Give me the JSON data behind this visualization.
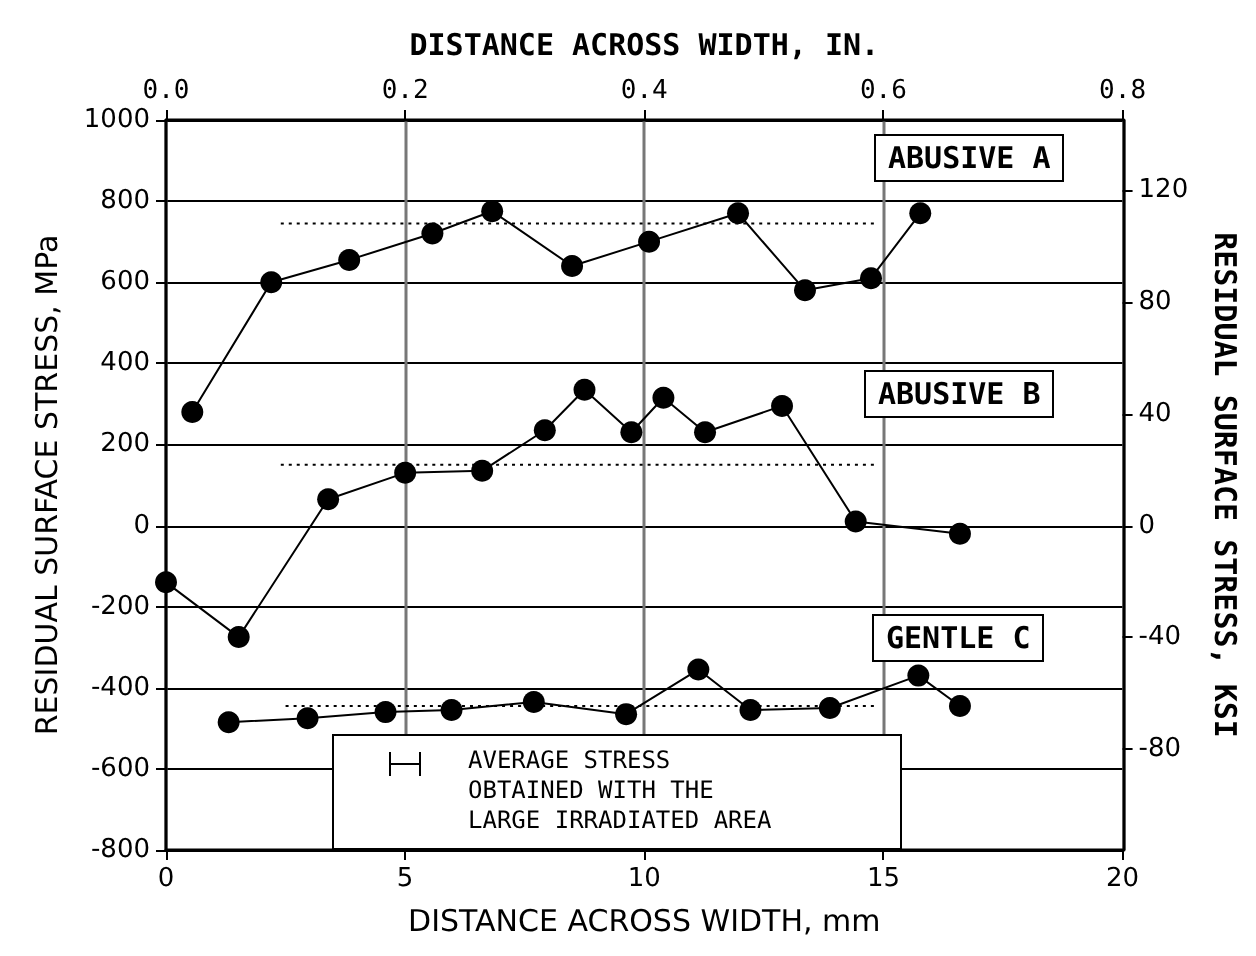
{
  "chart_data": {
    "type": "line",
    "xlabel": "DISTANCE ACROSS WIDTH, mm",
    "ylabel": "RESIDUAL SURFACE STRESS, MPa",
    "y2label": "RESIDUAL SURFACE STRESS, KSI",
    "x2label": "DISTANCE ACROSS WIDTH, IN.",
    "xlim": [
      0,
      20
    ],
    "xticks": [
      0,
      5,
      10,
      15,
      20
    ],
    "ylim": [
      -800,
      1000
    ],
    "yticks": [
      -800,
      -600,
      -400,
      -200,
      0,
      200,
      400,
      600,
      800,
      1000
    ],
    "y2lim": [
      -116,
      145
    ],
    "y2ticks": [
      -80,
      -40,
      0,
      40,
      80,
      120
    ],
    "x2lim": [
      0,
      0.8
    ],
    "x2ticks": [
      {
        "value": 0,
        "label": "0.0"
      },
      {
        "value": 0.2,
        "label": "0.2"
      },
      {
        "value": 0.4,
        "label": "0.4"
      },
      {
        "value": 0.6,
        "label": "0.6"
      },
      {
        "value": 0.8,
        "label": "0.8"
      }
    ],
    "grid": true,
    "marker": "circle",
    "line_style": "solid",
    "series": [
      {
        "color": "#000000",
        "x": [
          0.55,
          2.2,
          3.83,
          5.57,
          6.82,
          8.49,
          10.1,
          11.96,
          13.36,
          14.74,
          15.77
        ],
        "values": [
          280,
          600,
          655,
          720,
          775,
          640,
          700,
          770,
          580,
          610,
          770
        ]
      },
      {
        "color": "#000000",
        "x": [
          0,
          1.52,
          3.39,
          5.0,
          6.61,
          7.92,
          8.75,
          9.73,
          10.4,
          11.27,
          12.88,
          14.42,
          16.6
        ],
        "values": [
          -140,
          -275,
          65,
          130,
          135,
          235,
          335,
          230,
          315,
          230,
          295,
          10,
          -20
        ]
      },
      {
        "color": "#000000",
        "x": [
          1.31,
          2.96,
          4.59,
          5.97,
          7.69,
          9.62,
          11.13,
          12.22,
          13.88,
          15.73,
          16.6
        ],
        "values": [
          -485,
          -475,
          -460,
          -455,
          -435,
          -465,
          -355,
          -455,
          -450,
          -370,
          -445
        ]
      },
      {
        "color": "#000000",
        "marker": "none",
        "line_style": "dotted",
        "x": [
          2.4,
          14.8
        ],
        "values": [
          745,
          745
        ]
      },
      {
        "color": "#000000",
        "marker": "none",
        "line_style": "dotted",
        "x": [
          2.4,
          14.8
        ],
        "values": [
          150,
          150
        ]
      },
      {
        "color": "#000000",
        "marker": "none",
        "line_style": "dotted",
        "x": [
          2.5,
          14.8
        ],
        "values": [
          -445,
          -445
        ]
      }
    ],
    "annotations": [
      "ABUSIVE A",
      "ABUSIVE B",
      "GENTLE C",
      "AVERAGE STRESS\nOBTAINED WITH THE\nLARGE IRRADIATED AREA"
    ]
  }
}
